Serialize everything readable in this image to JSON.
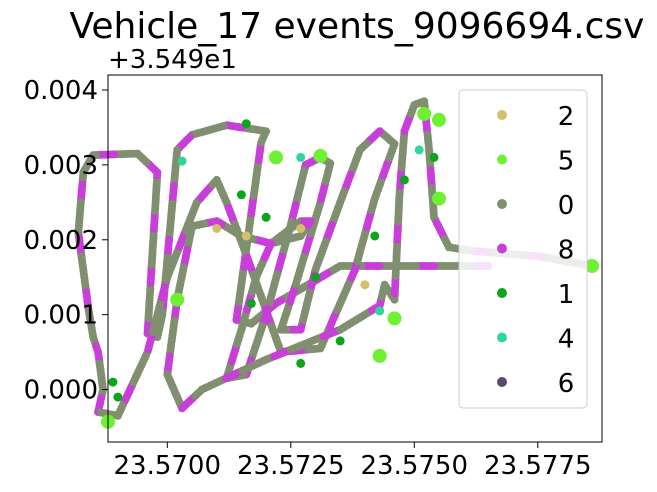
{
  "chart_data": {
    "type": "scatter",
    "title": "Vehicle_17 events_9096694.csv",
    "y_offset_label": "+3.549e1",
    "xlabel": "",
    "ylabel": "",
    "xlim": [
      23.5688,
      23.5788
    ],
    "ylim": [
      -0.0007,
      0.0042
    ],
    "x_ticks": [
      23.57,
      23.5725,
      23.575,
      23.5775
    ],
    "x_tick_labels": [
      "23.5700",
      "23.5725",
      "23.5750",
      "23.5775"
    ],
    "y_ticks": [
      0.0,
      0.001,
      0.002,
      0.003,
      0.004
    ],
    "y_tick_labels": [
      "0.000",
      "0.001",
      "0.002",
      "0.003",
      "0.004"
    ],
    "grid": false,
    "legend_position": "upper right",
    "track": [
      [
        23.5765,
        0.00165
      ],
      [
        23.5735,
        0.00165
      ],
      [
        23.5722,
        0.00115
      ],
      [
        23.5717,
        0.00088
      ],
      [
        23.5714,
        0.00093
      ],
      [
        23.5719,
        0.0033
      ],
      [
        23.572,
        0.00345
      ],
      [
        23.5712,
        0.00353
      ],
      [
        23.5705,
        0.0034
      ],
      [
        23.5702,
        0.0032
      ],
      [
        23.5699,
        0.001
      ],
      [
        23.5698,
        0.0007
      ],
      [
        23.5696,
        0.00075
      ],
      [
        23.5698,
        0.0029
      ],
      [
        23.5694,
        0.00315
      ],
      [
        23.5685,
        0.00313
      ],
      [
        23.5683,
        0.0029
      ],
      [
        23.5682,
        0.0021
      ],
      [
        23.5684,
        0.0011
      ],
      [
        23.5685,
        0.0007
      ],
      [
        23.5686,
        0.0005
      ],
      [
        23.5687,
        0.0
      ],
      [
        23.5686,
        -0.0003
      ],
      [
        23.569,
        -0.00035
      ],
      [
        23.5696,
        0.0005
      ],
      [
        23.57,
        0.0015
      ],
      [
        23.5706,
        0.0025
      ],
      [
        23.571,
        0.0028
      ],
      [
        23.5712,
        0.0025
      ],
      [
        23.5716,
        0.0018
      ],
      [
        23.5723,
        0.0005
      ],
      [
        23.5731,
        0.00055
      ],
      [
        23.5738,
        0.0016
      ],
      [
        23.5742,
        0.00255
      ],
      [
        23.5746,
        0.00328
      ],
      [
        23.5743,
        0.00345
      ],
      [
        23.5739,
        0.0032
      ],
      [
        23.5735,
        0.0025
      ],
      [
        23.573,
        0.0016
      ],
      [
        23.5727,
        0.0008
      ],
      [
        23.5723,
        0.0008
      ],
      [
        23.5726,
        0.0014
      ],
      [
        23.5731,
        0.0025
      ],
      [
        23.5733,
        0.00302
      ],
      [
        23.5731,
        0.0031
      ],
      [
        23.5728,
        0.003
      ],
      [
        23.5725,
        0.0022
      ],
      [
        23.572,
        0.001
      ],
      [
        23.5716,
        0.0002
      ],
      [
        23.5712,
        0.00015
      ],
      [
        23.5715,
        0.0008
      ],
      [
        23.5718,
        0.0015
      ],
      [
        23.5721,
        0.00195
      ],
      [
        23.5727,
        0.00225
      ],
      [
        23.5729,
        0.00225
      ],
      [
        23.5727,
        0.00205
      ],
      [
        23.5721,
        0.00195
      ],
      [
        23.5718,
        0.002
      ],
      [
        23.5715,
        0.00205
      ],
      [
        23.571,
        0.00225
      ],
      [
        23.5705,
        0.00218
      ],
      [
        23.5702,
        0.0012
      ],
      [
        23.57,
        0.0002
      ],
      [
        23.5703,
        -0.00025
      ],
      [
        23.5707,
        0.0
      ],
      [
        23.572,
        0.0004
      ],
      [
        23.5735,
        0.0008
      ],
      [
        23.5743,
        0.00112
      ],
      [
        23.5744,
        0.0014
      ],
      [
        23.5746,
        0.0012
      ],
      [
        23.5747,
        0.0026
      ],
      [
        23.5748,
        0.00345
      ],
      [
        23.575,
        0.0038
      ],
      [
        23.5752,
        0.00385
      ],
      [
        23.5753,
        0.0032
      ],
      [
        23.5754,
        0.0023
      ],
      [
        23.5757,
        0.0019
      ],
      [
        23.5762,
        0.00185
      ],
      [
        23.5775,
        0.00178
      ],
      [
        23.5786,
        0.00165
      ]
    ],
    "series": [
      {
        "name": "2",
        "color": "#d4c06a",
        "points": [
          [
            23.571,
            0.00215
          ],
          [
            23.5727,
            0.00215
          ],
          [
            23.5716,
            0.00205
          ],
          [
            23.574,
            0.0014
          ]
        ]
      },
      {
        "name": "5",
        "color": "#6ef033",
        "points": [
          [
            23.5743,
            0.00045
          ],
          [
            23.5746,
            0.00095
          ],
          [
            23.5752,
            0.00368
          ],
          [
            23.5755,
            0.0036
          ],
          [
            23.5688,
            -0.00043
          ],
          [
            23.5702,
            0.0012
          ],
          [
            23.5722,
            0.0031
          ],
          [
            23.5786,
            0.00165
          ],
          [
            23.5755,
            0.00255
          ],
          [
            23.5731,
            0.00312
          ]
        ]
      },
      {
        "name": "0",
        "color": "#808f6f",
        "points": []
      },
      {
        "name": "8",
        "color": "#c83ed8",
        "points": []
      },
      {
        "name": "1",
        "color": "#0aa51a",
        "points": [
          [
            23.5689,
            0.0001
          ],
          [
            23.569,
            -0.0001
          ],
          [
            23.5716,
            0.00355
          ],
          [
            23.5715,
            0.0026
          ],
          [
            23.5717,
            0.00115
          ],
          [
            23.573,
            0.0015
          ],
          [
            23.5735,
            0.00065
          ],
          [
            23.5742,
            0.00205
          ],
          [
            23.5754,
            0.0031
          ],
          [
            23.572,
            0.0023
          ],
          [
            23.5748,
            0.0028
          ],
          [
            23.5727,
            0.00035
          ]
        ]
      },
      {
        "name": "4",
        "color": "#2fd69a",
        "points": [
          [
            23.5703,
            0.00305
          ],
          [
            23.5727,
            0.0031
          ],
          [
            23.5751,
            0.0032
          ],
          [
            23.5743,
            0.00105
          ]
        ]
      },
      {
        "name": "6",
        "color": "#5a4a6c",
        "points": []
      }
    ]
  }
}
